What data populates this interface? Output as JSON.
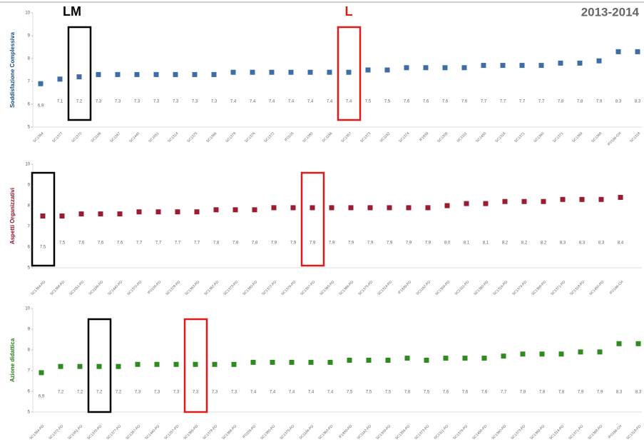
{
  "header": {
    "lm": "LM",
    "l": "L",
    "period": "2013-2014"
  },
  "chart_data": [
    {
      "type": "dot",
      "y_label": "Soddisfazione Complessiva",
      "color": "#3d6ca6",
      "label_color": "#1f4e79",
      "categories": [
        "SC1364",
        "SC1377",
        "SC1370",
        "SC1196",
        "SC1267",
        "SC1440",
        "SC1051",
        "SC1314",
        "SC1375",
        "SC1366",
        "SC1378",
        "SC1376",
        "SC1372",
        "IF0105",
        "SC1380",
        "SC1166",
        "SC1357",
        "SC1373",
        "SC1162",
        "SC1374",
        "IF1839",
        "SC1309",
        "SC1311",
        "SC1450",
        "SC1316",
        "SC1371",
        "SC1360",
        "SC1371",
        "SC1369",
        "SC1368",
        "IF0166-CH",
        "SC1318"
      ],
      "values": [
        6.9,
        7.1,
        7.2,
        7.3,
        7.3,
        7.3,
        7.3,
        7.3,
        7.3,
        7.3,
        7.4,
        7.4,
        7.4,
        7.4,
        7.4,
        7.4,
        7.4,
        7.5,
        7.5,
        7.6,
        7.6,
        7.6,
        7.6,
        7.7,
        7.7,
        7.7,
        7.7,
        7.8,
        7.8,
        7.9,
        8.3,
        8.3
      ],
      "value_labels": [
        "6,9",
        "7,1",
        "7,2",
        "7,3",
        "7,3",
        "7,3",
        "7,3",
        "7,3",
        "7,3",
        "7,3",
        "7,4",
        "7,4",
        "7,4",
        "7,4",
        "7,4",
        "7,4",
        "7,4",
        "7,5",
        "7,5",
        "7,6",
        "7,6",
        "7,6",
        "7,6",
        "7,7",
        "7,7",
        "7,7",
        "7,7",
        "7,8",
        "7,8",
        "7,9",
        "8,3",
        "8,3"
      ],
      "ylim": [
        5,
        10
      ],
      "yticks": [
        5,
        6,
        7,
        8,
        9,
        10
      ]
    },
    {
      "type": "dot",
      "y_label": "Aspetti Organizzativi",
      "color": "#9b1b30",
      "label_color": "#8b1a2b",
      "categories": [
        "SC1364-PD",
        "SC1368-PD",
        "SC1051-PD",
        "SC1196-PD",
        "SC1440-PD",
        "SC1370-PD",
        "IF0105-PD",
        "SC1378-PD",
        "SC1363-PD",
        "SC1362-PD",
        "SC1373-PD",
        "SC1380-PD",
        "SC1372-PD",
        "SC1376-PD",
        "SC1357-PD",
        "SC1365-PD",
        "SC1366-PD",
        "SC1375-PD",
        "SC1314-PD",
        "IF1839-PD",
        "SC1162-PD",
        "SC1309-PD",
        "SC1311-PD",
        "SC1360-PD",
        "SC1316-PD",
        "SC1374-PD",
        "SC1369-PD",
        "SC1371-PD",
        "SC1318-PD",
        "SC1450-PD",
        "IF0166-CH"
      ],
      "values": [
        7.5,
        7.5,
        7.6,
        7.6,
        7.6,
        7.7,
        7.7,
        7.7,
        7.7,
        7.8,
        7.8,
        7.8,
        7.9,
        7.9,
        7.9,
        7.9,
        7.9,
        7.9,
        7.9,
        7.9,
        7.9,
        8.0,
        8.1,
        8.1,
        8.2,
        8.2,
        8.2,
        8.3,
        8.3,
        8.3,
        8.4
      ],
      "value_labels": [
        "7,5",
        "7,5",
        "7,6",
        "7,6",
        "7,6",
        "7,7",
        "7,7",
        "7,7",
        "7,7",
        "7,8",
        "7,8",
        "7,8",
        "7,9",
        "7,9",
        "7,9",
        "7,9",
        "7,9",
        "7,9",
        "7,9",
        "7,9",
        "7,9",
        "8,0",
        "8,1",
        "8,1",
        "8,2",
        "8,2",
        "8,2",
        "8,3",
        "8,3",
        "8,3",
        "8,4"
      ],
      "ylim": [
        5,
        10
      ],
      "yticks": [
        5,
        6,
        7,
        8,
        9,
        10
      ]
    },
    {
      "type": "dot",
      "y_label": "Azione didattica",
      "color": "#2e8b1e",
      "label_color": "#2e7d1a",
      "categories": [
        "SC1364-PD",
        "SC1372-PD",
        "SC1051-PD",
        "SC1370-PD",
        "SC1377-PD",
        "SC1267-PD",
        "SC1440-PD",
        "SC1257-PD",
        "SC1365-PD",
        "SC1378-PD",
        "SC1366-PD",
        "IF0105-PD",
        "SC1380-PD",
        "SC1375-PD",
        "SC1196-PD",
        "SC1363-PD",
        "IF1839-PD",
        "SC1162-PD",
        "SC1309-PD",
        "SC1356-PD",
        "SC1373-PD",
        "SC1311-PD",
        "SC1376-PD",
        "SC1450-PD",
        "SC1360-PD",
        "SC1373-PD",
        "SC1369-PD",
        "SC1314-PD",
        "SC1371-PD",
        "SC1368-PD",
        "IF0166-CH",
        "SC1318-PD"
      ],
      "values": [
        6.9,
        7.2,
        7.2,
        7.2,
        7.2,
        7.3,
        7.3,
        7.3,
        7.3,
        7.3,
        7.3,
        7.4,
        7.4,
        7.4,
        7.4,
        7.4,
        7.5,
        7.5,
        7.5,
        7.6,
        7.5,
        7.6,
        7.6,
        7.6,
        7.7,
        7.8,
        7.8,
        7.8,
        7.9,
        7.9,
        8.3,
        8.3
      ],
      "value_labels": [
        "6,9",
        "7,2",
        "7,2",
        "7,2",
        "7,2",
        "7,3",
        "7,3",
        "7,3",
        "7,3",
        "7,3",
        "7,3",
        "7,4",
        "7,4",
        "7,4",
        "7,4",
        "7,4",
        "7,5",
        "7,5",
        "7,5",
        "7,6",
        "7,5",
        "7,6",
        "7,6",
        "7,6",
        "7,7",
        "7,8",
        "7,8",
        "7,8",
        "7,9",
        "7,9",
        "8,3",
        "8,3"
      ],
      "ylim": [
        5,
        10
      ],
      "yticks": [
        5,
        6,
        7,
        8,
        9,
        10
      ]
    }
  ]
}
